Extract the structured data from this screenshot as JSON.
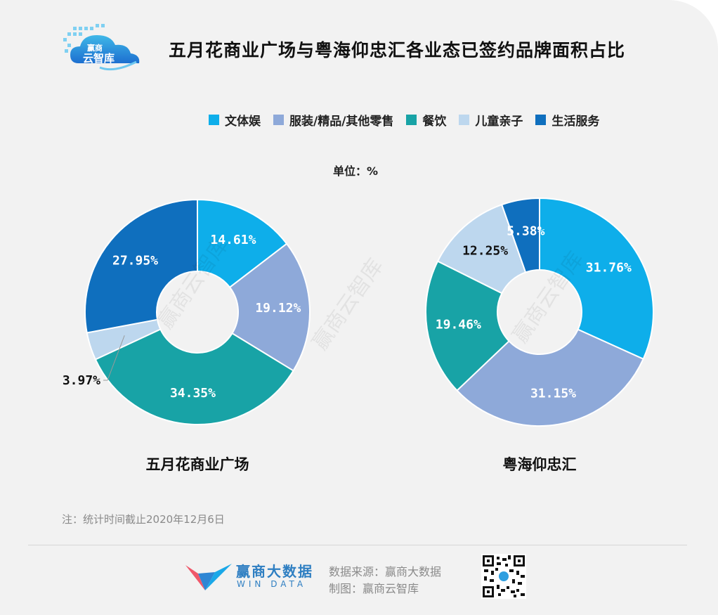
{
  "logo": {
    "text_top": "赢商",
    "text_bottom": "云智库",
    "icon": "cloud-logo-icon"
  },
  "title": "五月花商业广场与粤海仰忠汇各业态已签约品牌面积占比",
  "unit": "单位：%",
  "colors": {
    "wenti": "#0eaeea",
    "fuzhuang": "#8ea9d9",
    "canyin": "#18a3a6",
    "ertong": "#bdd7ee",
    "shenghuo": "#0f6fbe"
  },
  "chart_data": [
    {
      "type": "pie",
      "title": "五月花商业广场",
      "categories": [
        "文体娱",
        "服装/精品/其他零售",
        "餐饮",
        "儿童亲子",
        "生活服务"
      ],
      "values": [
        14.61,
        19.12,
        34.35,
        3.97,
        27.95
      ],
      "labels": [
        "14.61%",
        "19.12%",
        "34.35%",
        "3.97%",
        "27.95%"
      ],
      "legend_position": "top"
    },
    {
      "type": "pie",
      "title": "粤海仰忠汇",
      "categories": [
        "文体娱",
        "服装/精品/其他零售",
        "餐饮",
        "儿童亲子",
        "生活服务"
      ],
      "values": [
        31.76,
        31.15,
        19.46,
        12.25,
        5.38
      ],
      "labels": [
        "31.76%",
        "31.15%",
        "19.46%",
        "12.25%",
        "5.38%"
      ],
      "legend_position": "top"
    }
  ],
  "legend": [
    "文体娱",
    "服装/精品/其他零售",
    "餐饮",
    "儿童亲子",
    "生活服务"
  ],
  "watermark": "赢商云智库",
  "note": "注：统计时间截止2020年12月6日",
  "footer": {
    "brand_cn": "赢商大数据",
    "brand_en": "WIN DATA",
    "source": "数据来源：赢商大数据",
    "made_by": "制图：赢商云智库",
    "qr_icon": "qr-code-icon"
  }
}
